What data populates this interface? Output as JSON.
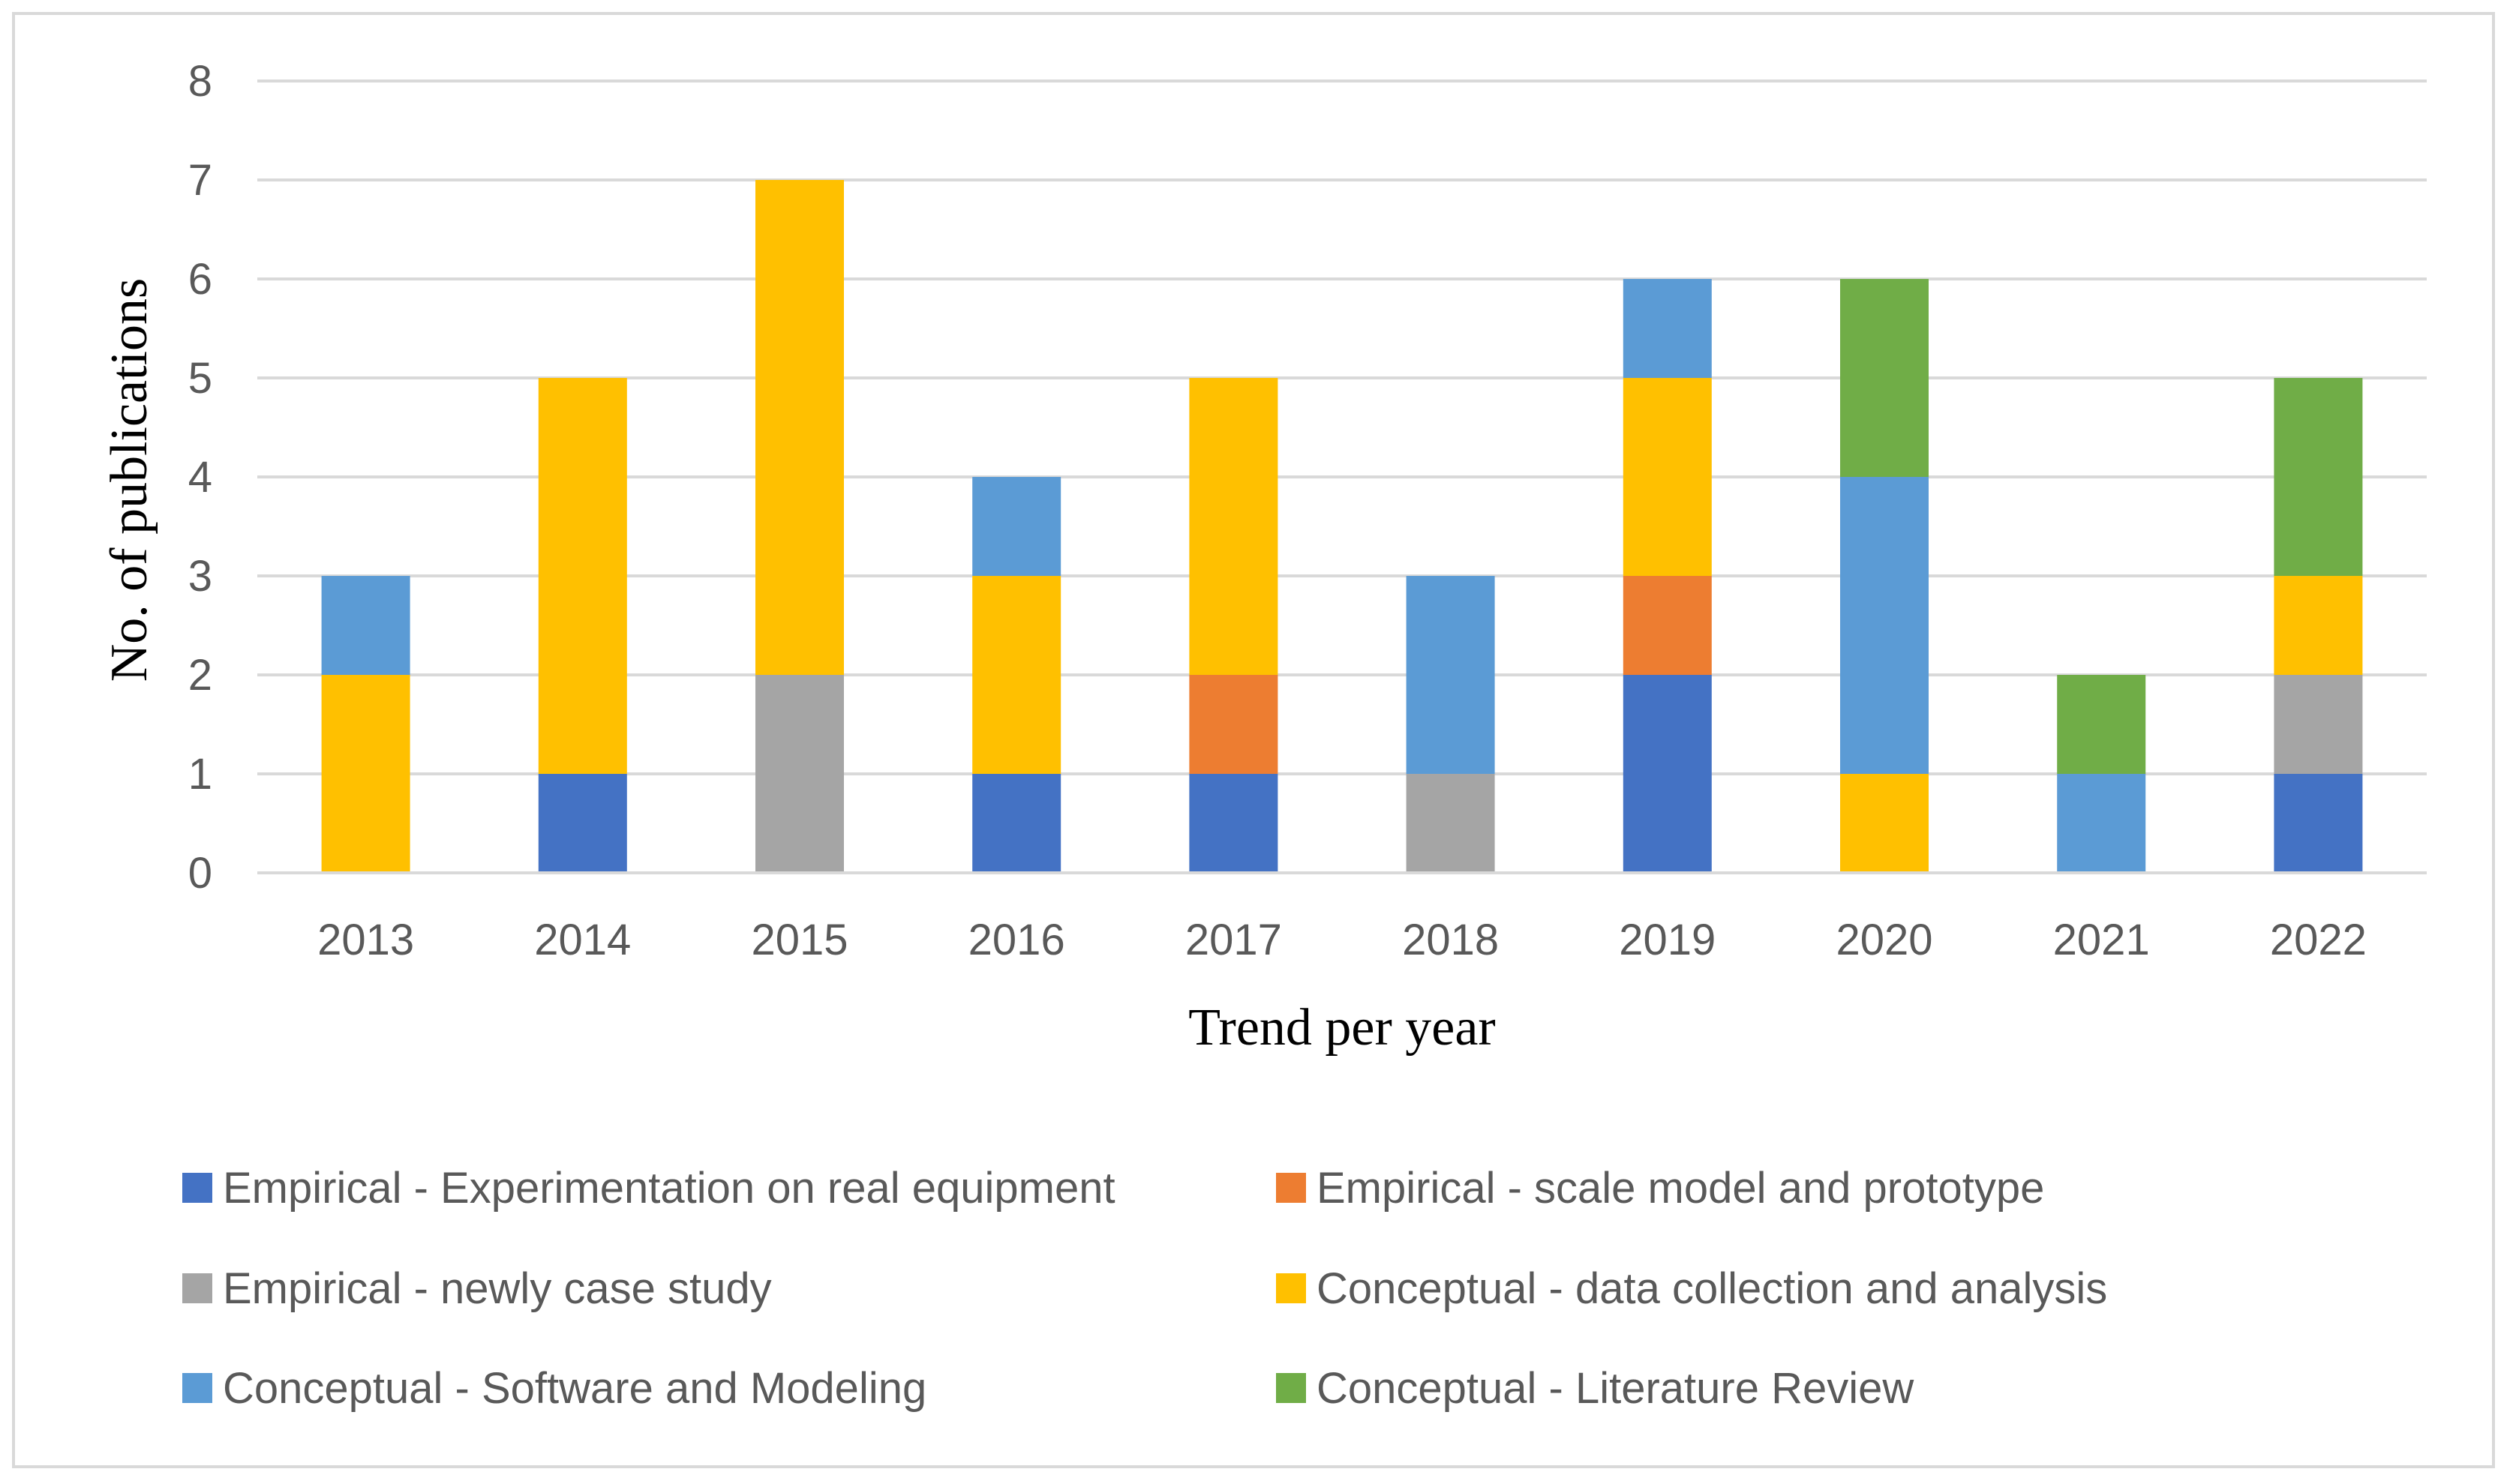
{
  "chart_data": {
    "type": "bar",
    "stacked": true,
    "title": "",
    "xlabel": "Trend per year",
    "ylabel": "No. of publications",
    "ylim": [
      0,
      8
    ],
    "yticks": [
      0,
      1,
      2,
      3,
      4,
      5,
      6,
      7,
      8
    ],
    "grid": true,
    "legend_position": "bottom",
    "categories": [
      "2013",
      "2014",
      "2015",
      "2016",
      "2017",
      "2018",
      "2019",
      "2020",
      "2021",
      "2022"
    ],
    "series": [
      {
        "name": "Empirical - Experimentation on real equipment",
        "color": "#4472C4",
        "values": [
          0,
          1,
          0,
          1,
          1,
          0,
          2,
          0,
          0,
          1
        ]
      },
      {
        "name": "Empirical - scale model and prototype",
        "color": "#ED7D31",
        "values": [
          0,
          0,
          0,
          0,
          1,
          0,
          1,
          0,
          0,
          0
        ]
      },
      {
        "name": "Empirical - newly case study",
        "color": "#A5A5A5",
        "values": [
          0,
          0,
          2,
          0,
          0,
          1,
          0,
          0,
          0,
          1
        ]
      },
      {
        "name": "Conceptual - data collection and analysis",
        "color": "#FFC000",
        "values": [
          2,
          4,
          5,
          2,
          3,
          0,
          2,
          1,
          0,
          1
        ]
      },
      {
        "name": "Conceptual - Software and Modeling",
        "color": "#5B9BD5",
        "values": [
          1,
          0,
          0,
          1,
          0,
          2,
          1,
          3,
          1,
          0
        ]
      },
      {
        "name": "Conceptual - Literature Review",
        "color": "#70AD47",
        "values": [
          0,
          0,
          0,
          0,
          0,
          0,
          0,
          2,
          1,
          2
        ]
      }
    ]
  }
}
